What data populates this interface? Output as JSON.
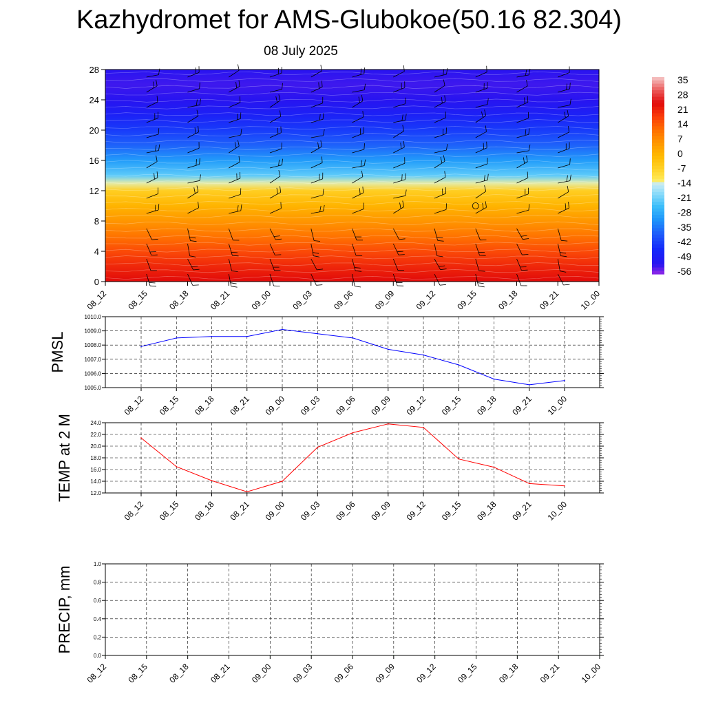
{
  "title": "Kazhydromet for AMS-Glubokoe(50.16 82.304)",
  "date": "08 July 2025",
  "time_labels": [
    "08_12",
    "08_15",
    "08_18",
    "08_21",
    "09_00",
    "09_03",
    "09_06",
    "09_09",
    "09_12",
    "09_15",
    "09_18",
    "09_21",
    "10_00"
  ],
  "colors": {
    "pmsl": "#0000ff",
    "temp": "#ff0000",
    "precip": "#006400",
    "wind": "#000000"
  },
  "chart_data": [
    {
      "type": "heatmap",
      "name": "upper-air-temperature-wind",
      "x": [
        "08_12",
        "08_15",
        "08_18",
        "08_21",
        "09_00",
        "09_03",
        "09_06",
        "09_09",
        "09_12",
        "09_15",
        "09_18",
        "09_21",
        "10_00"
      ],
      "ylim": [
        0,
        28
      ],
      "yticks": [
        0,
        4,
        8,
        12,
        16,
        20,
        24,
        28
      ],
      "colorbar_labels": [
        "35",
        "28",
        "21",
        "14",
        "7",
        "0",
        "-7",
        "-14",
        "-21",
        "-28",
        "-35",
        "-42",
        "-49",
        "-56"
      ],
      "colorbar_range": [
        -63,
        42
      ],
      "temperature_profile": [
        {
          "level": 0,
          "value": 28
        },
        {
          "level": 2,
          "value": 24
        },
        {
          "level": 4,
          "value": 19
        },
        {
          "level": 6,
          "value": 13
        },
        {
          "level": 8,
          "value": 7
        },
        {
          "level": 10,
          "value": 1
        },
        {
          "level": 12,
          "value": -6
        },
        {
          "level": 13,
          "value": -14
        },
        {
          "level": 14,
          "value": -24
        },
        {
          "level": 16,
          "value": -33
        },
        {
          "level": 18,
          "value": -41
        },
        {
          "level": 20,
          "value": -47
        },
        {
          "level": 22,
          "value": -53
        },
        {
          "level": 24,
          "value": -58
        },
        {
          "level": 26,
          "value": -59
        },
        {
          "level": 28,
          "value": -58
        }
      ],
      "wind_levels": [
        1,
        3,
        5,
        7,
        9,
        11,
        13,
        15,
        17,
        19,
        21,
        23,
        25,
        27
      ],
      "calm_marker": {
        "x": "09_15",
        "level": 10
      }
    },
    {
      "type": "line",
      "name": "pmsl",
      "ylabel": "PMSL",
      "ylim": [
        1005.0,
        1010.0
      ],
      "yticks": [
        "1005.0",
        "1006.0",
        "1007.0",
        "1008.0",
        "1009.0",
        "1010.0"
      ],
      "x": [
        "08_12",
        "08_15",
        "08_18",
        "08_21",
        "09_00",
        "09_03",
        "09_06",
        "09_09",
        "09_12",
        "09_15",
        "09_18",
        "09_21",
        "10_00"
      ],
      "series": [
        {
          "values": [
            1007.9,
            1008.5,
            1008.6,
            1008.6,
            1009.1,
            1008.8,
            1008.5,
            1007.7,
            1007.3,
            1006.6,
            1005.6,
            1005.2,
            1005.5
          ]
        }
      ],
      "grid": true
    },
    {
      "type": "line",
      "name": "temp-2m",
      "ylabel": "TEMP at 2 M",
      "ylim": [
        12.0,
        24.0
      ],
      "yticks": [
        "12.0",
        "14.0",
        "16.0",
        "18.0",
        "20.0",
        "22.0",
        "24.0"
      ],
      "x": [
        "08_12",
        "08_15",
        "08_18",
        "08_21",
        "09_00",
        "09_03",
        "09_06",
        "09_09",
        "09_12",
        "09_15",
        "09_18",
        "09_21",
        "10_00"
      ],
      "series": [
        {
          "values": [
            21.4,
            16.5,
            14.1,
            12.2,
            14.0,
            19.8,
            22.3,
            23.8,
            23.2,
            17.8,
            16.4,
            13.6,
            13.2
          ]
        }
      ],
      "grid": true
    },
    {
      "type": "line",
      "name": "precip",
      "ylabel": "PRECIP, mm",
      "ylim": [
        0.0,
        1.0
      ],
      "yticks": [
        "0.0",
        "0.2",
        "0.4",
        "0.6",
        "0.8",
        "1.0"
      ],
      "x": [
        "08_12",
        "08_15",
        "08_18",
        "08_21",
        "09_00",
        "09_03",
        "09_06",
        "09_09",
        "09_12",
        "09_15",
        "09_18",
        "09_21",
        "10_00"
      ],
      "series": [
        {
          "values": [
            0,
            0,
            0,
            0,
            0,
            0,
            0,
            0,
            0,
            0,
            0,
            0,
            0
          ]
        }
      ],
      "grid": true
    }
  ]
}
